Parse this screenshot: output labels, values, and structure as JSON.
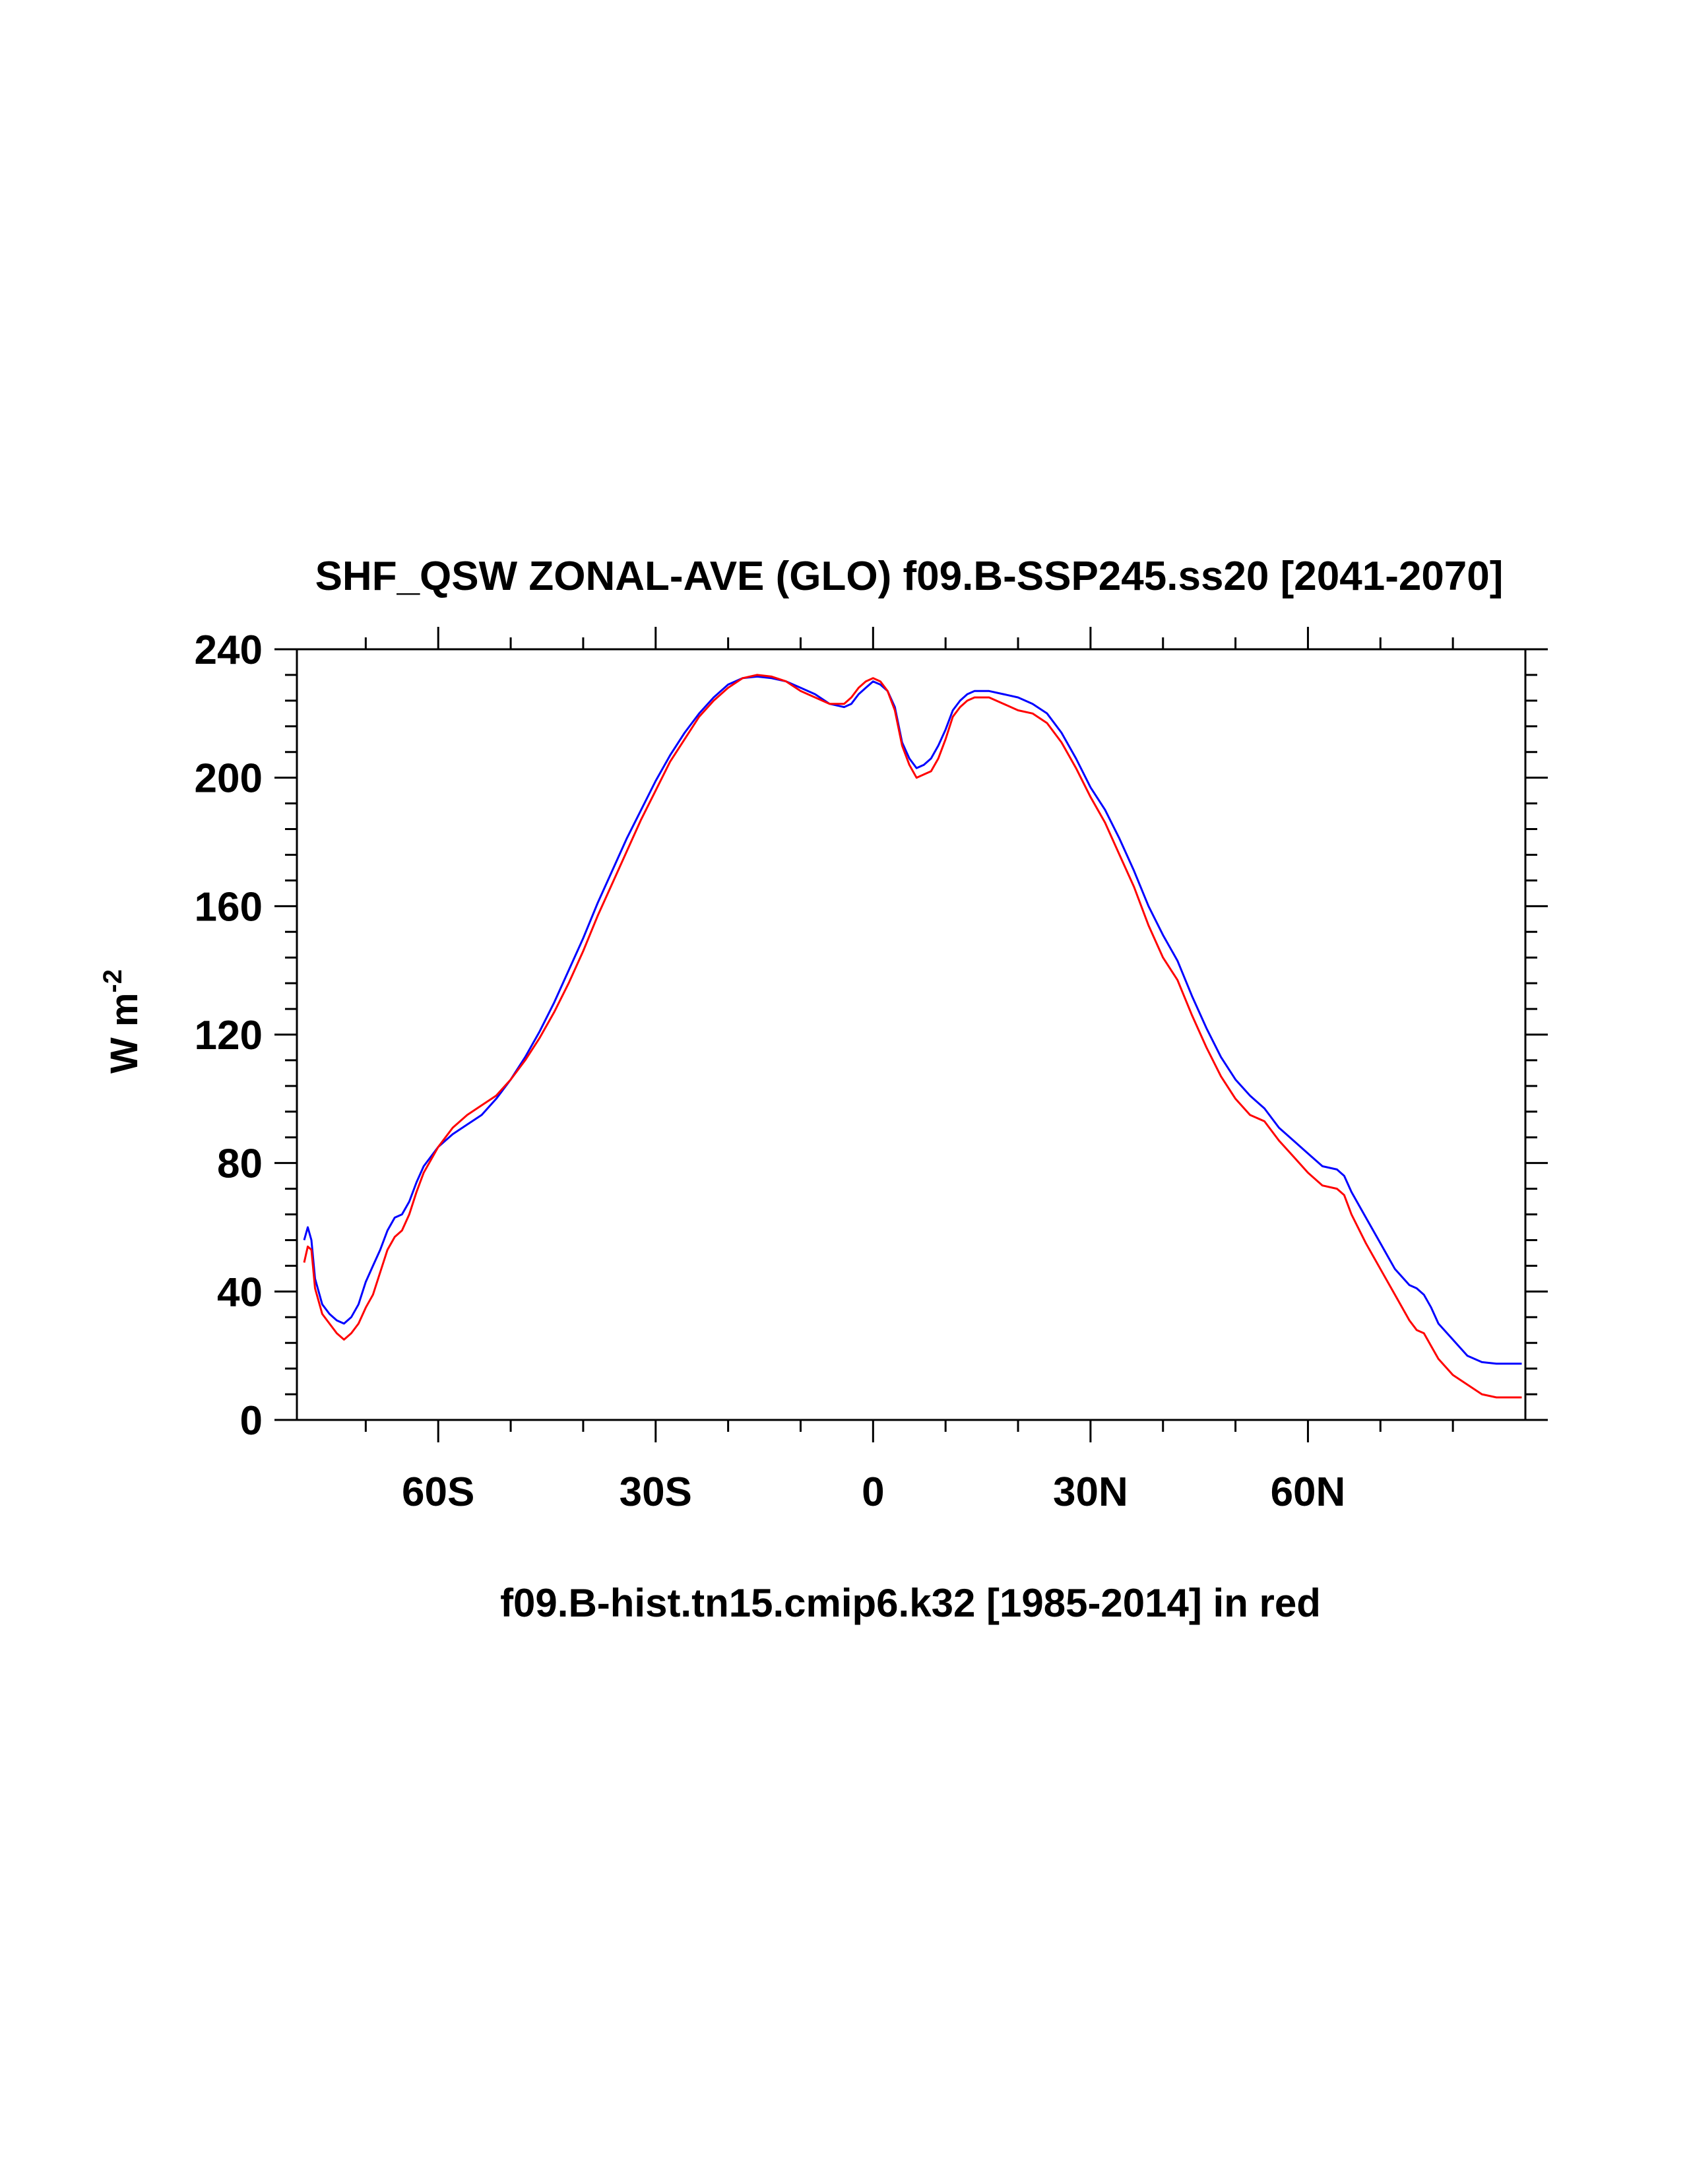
{
  "chart_data": {
    "type": "line",
    "title": "SHF_QSW ZONAL-AVE (GLO) f09.B-SSP245.ss20 [2041-2070]",
    "ylabel_main": "W m",
    "ylabel_sup": "-2",
    "xlabel": "f09.B-hist.tn15.cmip6.k32 [1985-2014] in red",
    "xlim": [
      -79.5,
      90
    ],
    "ylim": [
      0,
      240
    ],
    "x_ticks": [
      {
        "value": -60,
        "label": "60S"
      },
      {
        "value": -30,
        "label": "30S"
      },
      {
        "value": 0,
        "label": "0"
      },
      {
        "value": 30,
        "label": "30N"
      },
      {
        "value": 60,
        "label": "60N"
      }
    ],
    "y_ticks": [
      {
        "value": 0,
        "label": "0"
      },
      {
        "value": 40,
        "label": "40"
      },
      {
        "value": 80,
        "label": "80"
      },
      {
        "value": 120,
        "label": "120"
      },
      {
        "value": 160,
        "label": "160"
      },
      {
        "value": 200,
        "label": "200"
      },
      {
        "value": 240,
        "label": "240"
      }
    ],
    "grid": false,
    "series": [
      {
        "color": "#0000ff",
        "points": [
          [
            -78.5,
            56
          ],
          [
            -78,
            60
          ],
          [
            -77.5,
            56
          ],
          [
            -77,
            44
          ],
          [
            -76,
            36
          ],
          [
            -75,
            33
          ],
          [
            -74,
            31
          ],
          [
            -73,
            30
          ],
          [
            -72,
            32
          ],
          [
            -71,
            36
          ],
          [
            -70,
            43
          ],
          [
            -69,
            48
          ],
          [
            -68,
            53
          ],
          [
            -67,
            59
          ],
          [
            -66,
            63
          ],
          [
            -65,
            64
          ],
          [
            -64,
            68
          ],
          [
            -63,
            74
          ],
          [
            -62,
            79
          ],
          [
            -60,
            85
          ],
          [
            -58,
            89
          ],
          [
            -56,
            92
          ],
          [
            -54,
            95
          ],
          [
            -52,
            100
          ],
          [
            -50,
            106
          ],
          [
            -48,
            113
          ],
          [
            -46,
            121
          ],
          [
            -44,
            130
          ],
          [
            -42,
            140
          ],
          [
            -40,
            150
          ],
          [
            -38,
            161
          ],
          [
            -36,
            171
          ],
          [
            -34,
            181
          ],
          [
            -32,
            190
          ],
          [
            -30,
            199
          ],
          [
            -28,
            207
          ],
          [
            -26,
            214
          ],
          [
            -24,
            220
          ],
          [
            -22,
            225
          ],
          [
            -20,
            229
          ],
          [
            -18,
            231
          ],
          [
            -16,
            231.5
          ],
          [
            -14,
            231
          ],
          [
            -12,
            230
          ],
          [
            -10,
            228
          ],
          [
            -8,
            226
          ],
          [
            -6,
            223
          ],
          [
            -4,
            222
          ],
          [
            -3,
            223
          ],
          [
            -2,
            226
          ],
          [
            -1,
            228
          ],
          [
            0,
            230
          ],
          [
            1,
            229
          ],
          [
            2,
            227
          ],
          [
            3,
            222
          ],
          [
            4,
            211
          ],
          [
            5,
            206
          ],
          [
            6,
            203
          ],
          [
            7,
            204
          ],
          [
            8,
            206
          ],
          [
            9,
            210
          ],
          [
            10,
            215
          ],
          [
            11,
            221
          ],
          [
            12,
            224
          ],
          [
            13,
            226
          ],
          [
            14,
            227
          ],
          [
            16,
            227
          ],
          [
            18,
            226
          ],
          [
            20,
            225
          ],
          [
            22,
            223
          ],
          [
            24,
            220
          ],
          [
            26,
            214
          ],
          [
            28,
            206
          ],
          [
            30,
            197
          ],
          [
            32,
            190
          ],
          [
            34,
            181
          ],
          [
            36,
            171
          ],
          [
            38,
            160
          ],
          [
            40,
            151
          ],
          [
            42,
            143
          ],
          [
            44,
            132
          ],
          [
            46,
            122
          ],
          [
            48,
            113
          ],
          [
            50,
            106
          ],
          [
            52,
            101
          ],
          [
            54,
            97
          ],
          [
            56,
            91
          ],
          [
            58,
            87
          ],
          [
            60,
            83
          ],
          [
            62,
            79
          ],
          [
            64,
            78
          ],
          [
            65,
            76
          ],
          [
            66,
            71
          ],
          [
            68,
            63
          ],
          [
            70,
            55
          ],
          [
            72,
            47
          ],
          [
            74,
            42
          ],
          [
            75,
            41
          ],
          [
            76,
            39
          ],
          [
            77,
            35
          ],
          [
            78,
            30
          ],
          [
            80,
            25
          ],
          [
            82,
            20
          ],
          [
            84,
            18
          ],
          [
            86,
            17.5
          ],
          [
            88,
            17.5
          ],
          [
            89.5,
            17.5
          ]
        ]
      },
      {
        "color": "#ff0000",
        "points": [
          [
            -78.5,
            49
          ],
          [
            -78,
            54
          ],
          [
            -77.5,
            53
          ],
          [
            -77,
            41
          ],
          [
            -76,
            33
          ],
          [
            -75,
            30
          ],
          [
            -74,
            27
          ],
          [
            -73,
            25
          ],
          [
            -72,
            27
          ],
          [
            -71,
            30
          ],
          [
            -70,
            35
          ],
          [
            -69,
            39
          ],
          [
            -68,
            46
          ],
          [
            -67,
            53
          ],
          [
            -66,
            57
          ],
          [
            -65,
            59
          ],
          [
            -64,
            64
          ],
          [
            -63,
            71
          ],
          [
            -62,
            77
          ],
          [
            -60,
            85
          ],
          [
            -58,
            91
          ],
          [
            -56,
            95
          ],
          [
            -54,
            98
          ],
          [
            -52,
            101
          ],
          [
            -50,
            106
          ],
          [
            -48,
            112
          ],
          [
            -46,
            119
          ],
          [
            -44,
            127
          ],
          [
            -42,
            136
          ],
          [
            -40,
            146
          ],
          [
            -38,
            157
          ],
          [
            -36,
            167
          ],
          [
            -34,
            177
          ],
          [
            -32,
            187
          ],
          [
            -30,
            196
          ],
          [
            -28,
            205
          ],
          [
            -26,
            212
          ],
          [
            -24,
            219
          ],
          [
            -22,
            224
          ],
          [
            -20,
            228
          ],
          [
            -18,
            231
          ],
          [
            -16,
            232
          ],
          [
            -14,
            231.5
          ],
          [
            -12,
            230
          ],
          [
            -10,
            227
          ],
          [
            -8,
            225
          ],
          [
            -6,
            223
          ],
          [
            -4,
            223
          ],
          [
            -3,
            225
          ],
          [
            -2,
            228
          ],
          [
            -1,
            230
          ],
          [
            0,
            231
          ],
          [
            1,
            230
          ],
          [
            2,
            227
          ],
          [
            3,
            221
          ],
          [
            4,
            210
          ],
          [
            5,
            204
          ],
          [
            6,
            200
          ],
          [
            7,
            201
          ],
          [
            8,
            202
          ],
          [
            9,
            206
          ],
          [
            10,
            212
          ],
          [
            11,
            219
          ],
          [
            12,
            222
          ],
          [
            13,
            224
          ],
          [
            14,
            225
          ],
          [
            16,
            225
          ],
          [
            18,
            223
          ],
          [
            20,
            221
          ],
          [
            22,
            220
          ],
          [
            24,
            217
          ],
          [
            26,
            211
          ],
          [
            28,
            203
          ],
          [
            30,
            194
          ],
          [
            32,
            186
          ],
          [
            34,
            176
          ],
          [
            36,
            166
          ],
          [
            38,
            154
          ],
          [
            40,
            144
          ],
          [
            42,
            137
          ],
          [
            44,
            126
          ],
          [
            46,
            116
          ],
          [
            48,
            107
          ],
          [
            50,
            100
          ],
          [
            52,
            95
          ],
          [
            54,
            93
          ],
          [
            56,
            87
          ],
          [
            58,
            82
          ],
          [
            60,
            77
          ],
          [
            62,
            73
          ],
          [
            64,
            72
          ],
          [
            65,
            70
          ],
          [
            66,
            64
          ],
          [
            68,
            55
          ],
          [
            70,
            47
          ],
          [
            72,
            39
          ],
          [
            74,
            31
          ],
          [
            75,
            28
          ],
          [
            76,
            27
          ],
          [
            77,
            23
          ],
          [
            78,
            19
          ],
          [
            80,
            14
          ],
          [
            82,
            11
          ],
          [
            84,
            8
          ],
          [
            86,
            7
          ],
          [
            88,
            7
          ],
          [
            89.5,
            7
          ]
        ]
      }
    ]
  }
}
